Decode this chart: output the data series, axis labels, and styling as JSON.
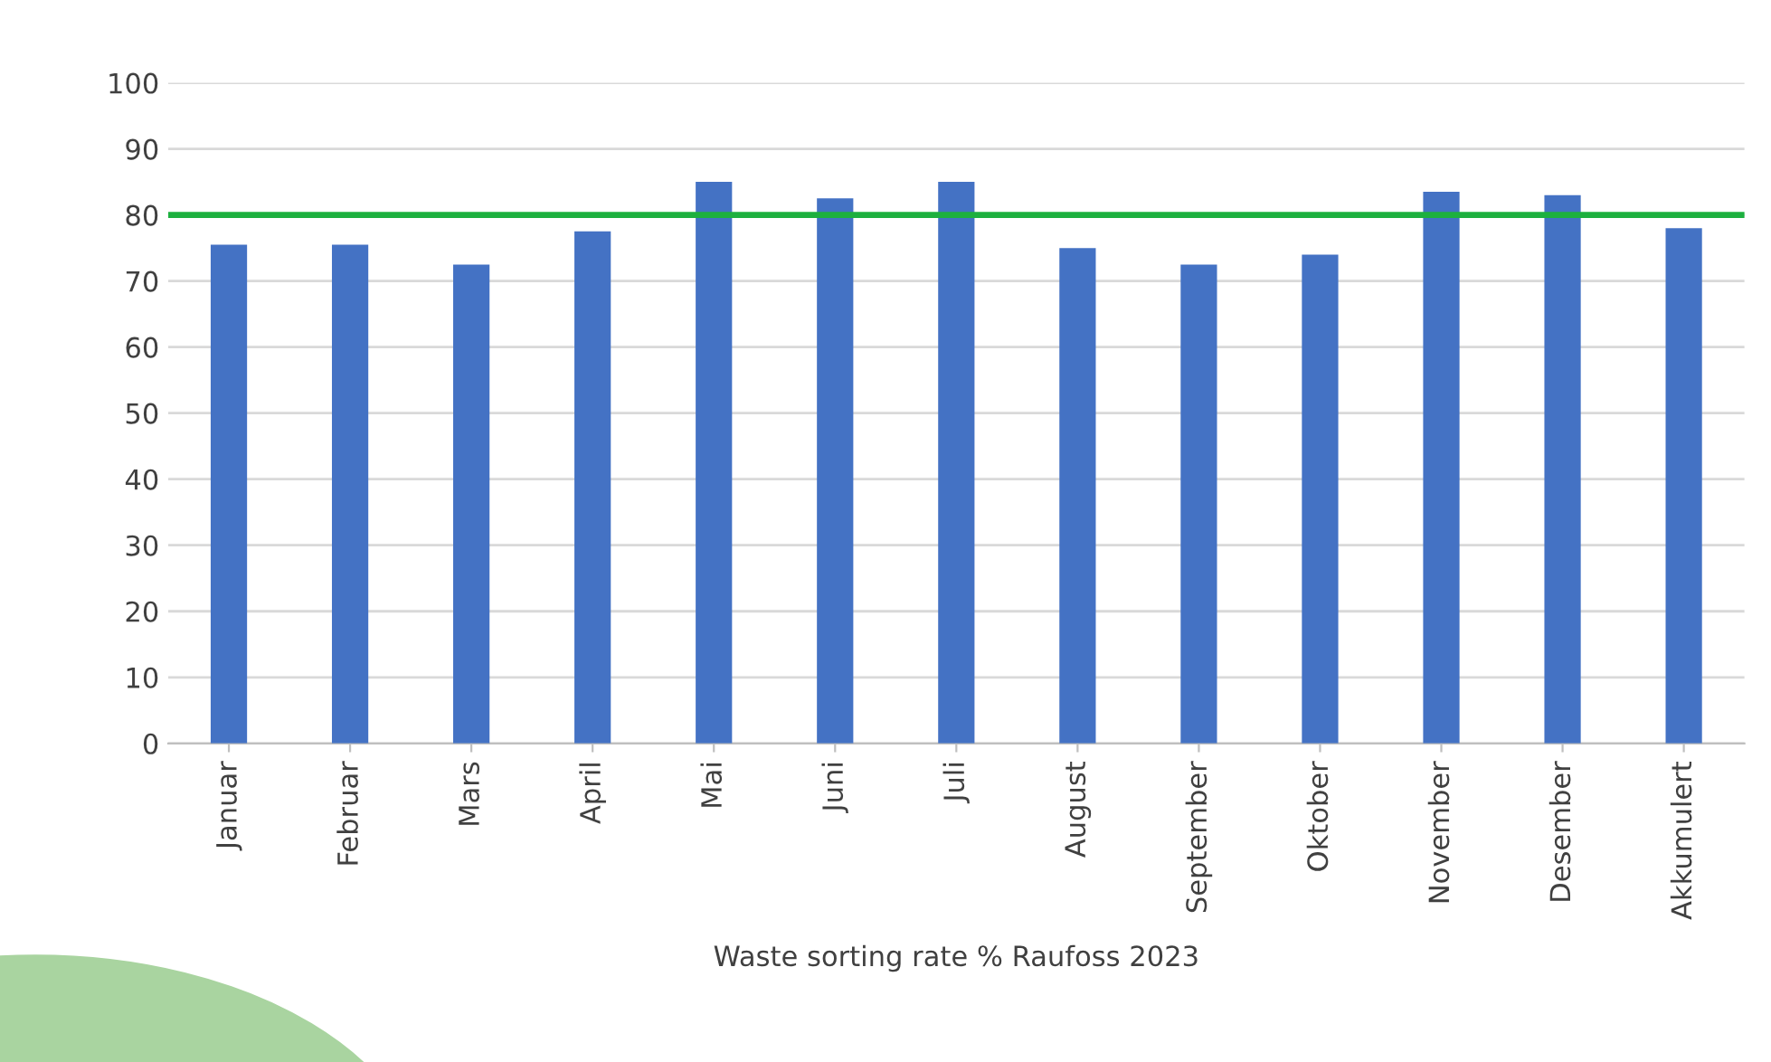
{
  "chart_data": {
    "type": "bar",
    "xlabel": "Waste sorting rate % Raufoss 2023",
    "categories": [
      "Januar",
      "Februar",
      "Mars",
      "April",
      "Mai",
      "Juni",
      "Juli",
      "August",
      "September",
      "Oktober",
      "November",
      "Desember",
      "Akkumulert"
    ],
    "values": [
      75.5,
      75.5,
      72.5,
      77.5,
      85,
      82.5,
      85,
      75,
      72.5,
      74,
      83.5,
      83,
      78
    ],
    "color": "#4472c4",
    "ylim": [
      0,
      100
    ],
    "yticks": [
      0,
      10,
      20,
      30,
      40,
      50,
      60,
      70,
      80,
      90,
      100
    ],
    "grid": "y",
    "ref_lines": [
      {
        "axis": "y",
        "value": 80,
        "color": "#1db03f"
      }
    ]
  }
}
